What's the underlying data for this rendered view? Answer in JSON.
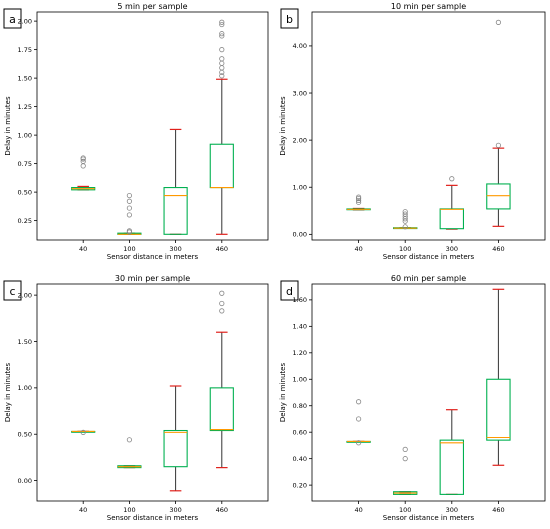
{
  "chart_data": [
    {
      "type": "boxplot",
      "panel": "a",
      "title": "5 min per sample",
      "xlabel": "Sensor distance in meters",
      "ylabel": "Delay in minutes",
      "categories": [
        "40",
        "100",
        "300",
        "460"
      ],
      "ylim": [
        0.08,
        2.08
      ],
      "yticks": [
        0.25,
        0.5,
        0.75,
        1.0,
        1.25,
        1.5,
        1.75,
        2.0
      ],
      "ytick_labels": [
        "0.25",
        "0.50",
        "0.75",
        "1.00",
        "1.25",
        "1.50",
        "1.75",
        "2.00"
      ],
      "boxes": [
        {
          "q1": 0.52,
          "median": 0.53,
          "q3": 0.54,
          "wlow": 0.52,
          "whigh": 0.55,
          "fliers": [
            0.73,
            0.77,
            0.79,
            0.8
          ]
        },
        {
          "q1": 0.13,
          "median": 0.13,
          "q3": 0.14,
          "wlow": 0.13,
          "whigh": 0.14,
          "fliers": [
            0.15,
            0.16,
            0.3,
            0.36,
            0.42,
            0.47
          ]
        },
        {
          "q1": 0.13,
          "median": 0.47,
          "q3": 0.54,
          "wlow": 0.13,
          "whigh": 1.05,
          "fliers": []
        },
        {
          "q1": 0.54,
          "median": 0.54,
          "q3": 0.92,
          "wlow": 0.13,
          "whigh": 1.49,
          "fliers": [
            1.52,
            1.55,
            1.59,
            1.63,
            1.67,
            1.75,
            1.87,
            1.89,
            1.97,
            1.99
          ]
        }
      ]
    },
    {
      "type": "boxplot",
      "panel": "b",
      "title": "10 min per sample",
      "xlabel": "Sensor distance in meters",
      "ylabel": "Delay in minutes",
      "categories": [
        "40",
        "100",
        "300",
        "460"
      ],
      "ylim": [
        -0.12,
        4.72
      ],
      "yticks": [
        0.0,
        1.0,
        2.0,
        3.0,
        4.0
      ],
      "ytick_labels": [
        "0.00",
        "1.00",
        "2.00",
        "3.00",
        "4.00"
      ],
      "boxes": [
        {
          "q1": 0.53,
          "median": 0.53,
          "q3": 0.54,
          "wlow": 0.52,
          "whigh": 0.55,
          "fliers": [
            0.68,
            0.72,
            0.76,
            0.79
          ]
        },
        {
          "q1": 0.13,
          "median": 0.13,
          "q3": 0.14,
          "wlow": 0.13,
          "whigh": 0.14,
          "fliers": [
            0.16,
            0.28,
            0.33,
            0.38,
            0.43,
            0.48
          ]
        },
        {
          "q1": 0.12,
          "median": 0.53,
          "q3": 0.54,
          "wlow": 0.11,
          "whigh": 1.04,
          "fliers": [
            1.18
          ]
        },
        {
          "q1": 0.54,
          "median": 0.82,
          "q3": 1.07,
          "wlow": 0.17,
          "whigh": 1.83,
          "fliers": [
            1.89,
            4.5
          ]
        }
      ]
    },
    {
      "type": "boxplot",
      "panel": "c",
      "title": "30 min per sample",
      "xlabel": "Sensor distance in meters",
      "ylabel": "Delay in minutes",
      "categories": [
        "40",
        "100",
        "300",
        "460"
      ],
      "ylim": [
        -0.22,
        2.12
      ],
      "yticks": [
        0.0,
        0.5,
        1.0,
        1.5,
        2.0
      ],
      "ytick_labels": [
        "0.00",
        "0.50",
        "1.00",
        "1.50",
        "2.00"
      ],
      "boxes": [
        {
          "q1": 0.53,
          "median": 0.53,
          "q3": 0.53,
          "wlow": 0.53,
          "whigh": 0.53,
          "fliers": [
            0.52
          ]
        },
        {
          "q1": 0.14,
          "median": 0.15,
          "q3": 0.16,
          "wlow": 0.14,
          "whigh": 0.16,
          "fliers": [
            0.44
          ]
        },
        {
          "q1": 0.15,
          "median": 0.52,
          "q3": 0.54,
          "wlow": -0.11,
          "whigh": 1.02,
          "fliers": []
        },
        {
          "q1": 0.54,
          "median": 0.55,
          "q3": 1.0,
          "wlow": 0.14,
          "whigh": 1.6,
          "fliers": [
            1.83,
            1.91,
            2.02
          ]
        }
      ]
    },
    {
      "type": "boxplot",
      "panel": "d",
      "title": "60 min per sample",
      "xlabel": "Sensor distance in meters",
      "ylabel": "Delay in minutes",
      "categories": [
        "40",
        "100",
        "300",
        "460"
      ],
      "ylim": [
        0.08,
        1.72
      ],
      "yticks": [
        0.2,
        0.4,
        0.6,
        0.8,
        1.0,
        1.2,
        1.4,
        1.6
      ],
      "ytick_labels": [
        "0.20",
        "0.40",
        "0.60",
        "0.80",
        "1.00",
        "1.20",
        "1.40",
        "1.60"
      ],
      "boxes": [
        {
          "q1": 0.53,
          "median": 0.53,
          "q3": 0.53,
          "wlow": 0.53,
          "whigh": 0.53,
          "fliers": [
            0.52,
            0.7,
            0.83
          ]
        },
        {
          "q1": 0.13,
          "median": 0.14,
          "q3": 0.15,
          "wlow": 0.13,
          "whigh": 0.15,
          "fliers": [
            0.4,
            0.47
          ]
        },
        {
          "q1": 0.13,
          "median": 0.52,
          "q3": 0.54,
          "wlow": 0.13,
          "whigh": 0.77,
          "fliers": []
        },
        {
          "q1": 0.54,
          "median": 0.56,
          "q3": 1.0,
          "wlow": 0.35,
          "whigh": 1.68,
          "fliers": []
        }
      ]
    }
  ],
  "colors": {
    "box": "#00b050",
    "median": "#ff9900",
    "whisker": "#333333",
    "cap": "#e0201b",
    "flier": "#888888"
  }
}
